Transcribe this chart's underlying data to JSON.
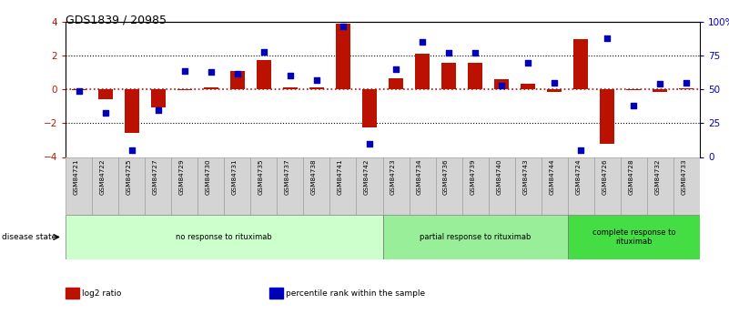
{
  "title": "GDS1839 / 20985",
  "samples": [
    "GSM84721",
    "GSM84722",
    "GSM84725",
    "GSM84727",
    "GSM84729",
    "GSM84730",
    "GSM84731",
    "GSM84735",
    "GSM84737",
    "GSM84738",
    "GSM84741",
    "GSM84742",
    "GSM84723",
    "GSM84734",
    "GSM84736",
    "GSM84739",
    "GSM84740",
    "GSM84743",
    "GSM84744",
    "GSM84724",
    "GSM84726",
    "GSM84728",
    "GSM84732",
    "GSM84733"
  ],
  "log2_ratio": [
    -0.05,
    -0.55,
    -2.55,
    -1.05,
    -0.05,
    0.15,
    1.1,
    1.75,
    0.1,
    0.15,
    3.9,
    -2.25,
    0.65,
    2.1,
    1.6,
    1.6,
    0.6,
    0.35,
    -0.15,
    3.0,
    -3.2,
    -0.05,
    -0.15,
    0.05
  ],
  "percentile": [
    49,
    33,
    5,
    35,
    64,
    63,
    62,
    78,
    60,
    57,
    97,
    10,
    65,
    85,
    77,
    77,
    53,
    70,
    55,
    5,
    88,
    38,
    54,
    55
  ],
  "groups": [
    {
      "label": "no response to rituximab",
      "start": 0,
      "end": 12,
      "color": "#ccffcc"
    },
    {
      "label": "partial response to rituximab",
      "start": 12,
      "end": 19,
      "color": "#99ee99"
    },
    {
      "label": "complete response to\nrituximab",
      "start": 19,
      "end": 24,
      "color": "#44dd44"
    }
  ],
  "ylim_left": [
    -4,
    4
  ],
  "ylim_right": [
    0,
    100
  ],
  "yticks_left": [
    -4,
    -2,
    0,
    2,
    4
  ],
  "yticks_right": [
    0,
    25,
    50,
    75,
    100
  ],
  "ytick_labels_right": [
    "0",
    "25",
    "50",
    "75",
    "100%"
  ],
  "bar_color": "#bb1100",
  "dot_color": "#0000bb",
  "zero_line_color": "#cc0000",
  "bg_color": "#ffffff",
  "legend_items": [
    {
      "label": "log2 ratio",
      "color": "#bb1100"
    },
    {
      "label": "percentile rank within the sample",
      "color": "#0000bb"
    }
  ]
}
